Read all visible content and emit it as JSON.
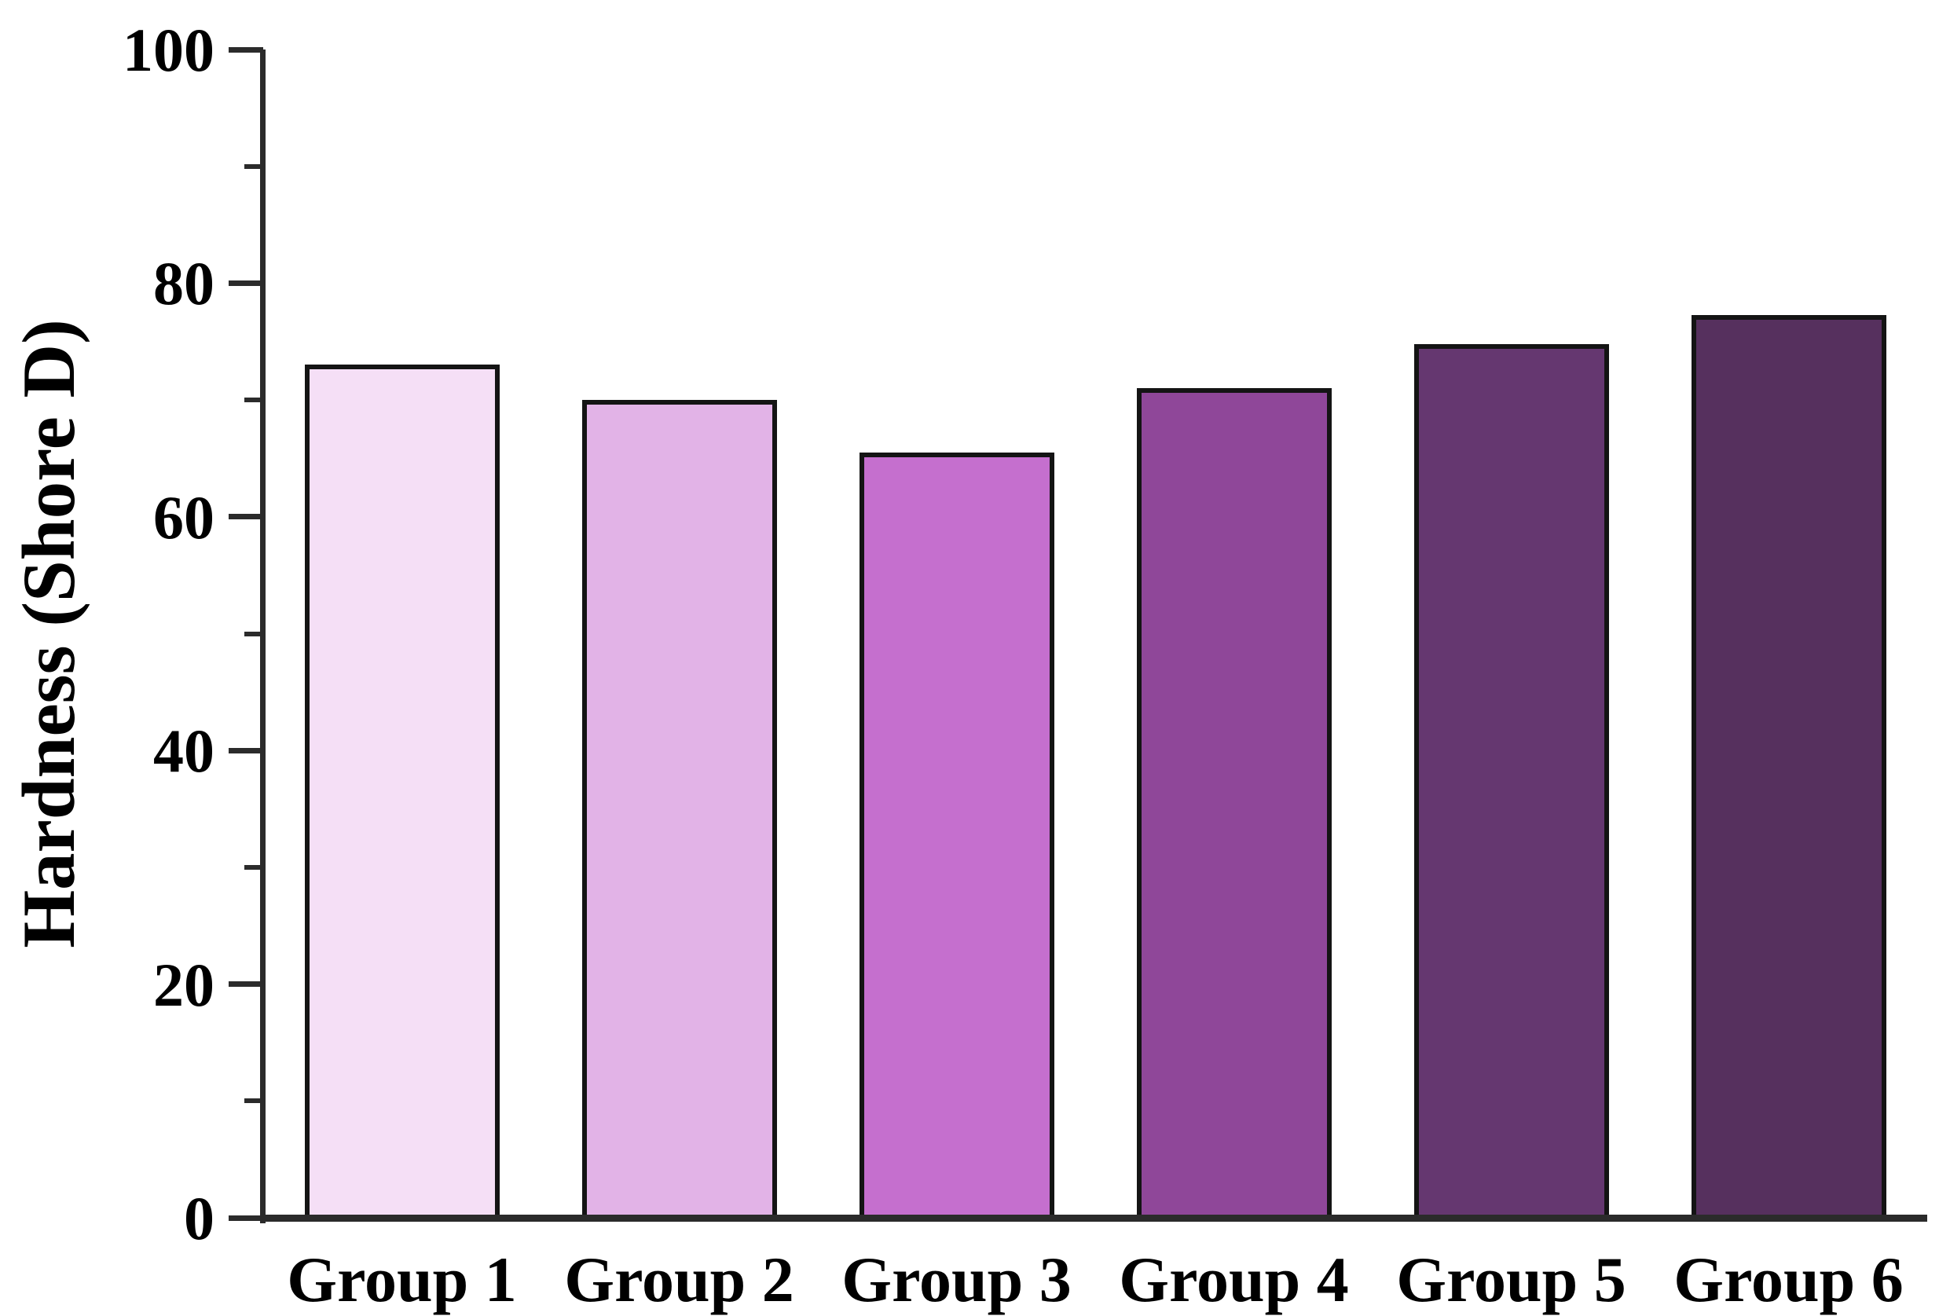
{
  "chart_data": {
    "type": "bar",
    "title": "",
    "categories": [
      "Group 1",
      "Group 2",
      "Group 3",
      "Group 4",
      "Group 5",
      "Group 6"
    ],
    "values": [
      73,
      70,
      65.5,
      71,
      74.8,
      77.3
    ],
    "bar_colors": [
      "#f5dff6",
      "#e2b3e7",
      "#c56fce",
      "#8f4799",
      "#653770",
      "#56305e"
    ],
    "bar_border_color": "#141414",
    "xlabel": "",
    "ylabel": "Hardness (Shore D)",
    "ylim": [
      0,
      100
    ],
    "y_major_ticks": [
      0,
      20,
      40,
      60,
      80,
      100
    ],
    "y_minor_ticks": [
      10,
      30,
      50,
      70,
      90
    ],
    "grid": false,
    "legend": false,
    "axis_color": "#2b2b2b",
    "text_color": "#000000",
    "background": "#ffffff"
  }
}
